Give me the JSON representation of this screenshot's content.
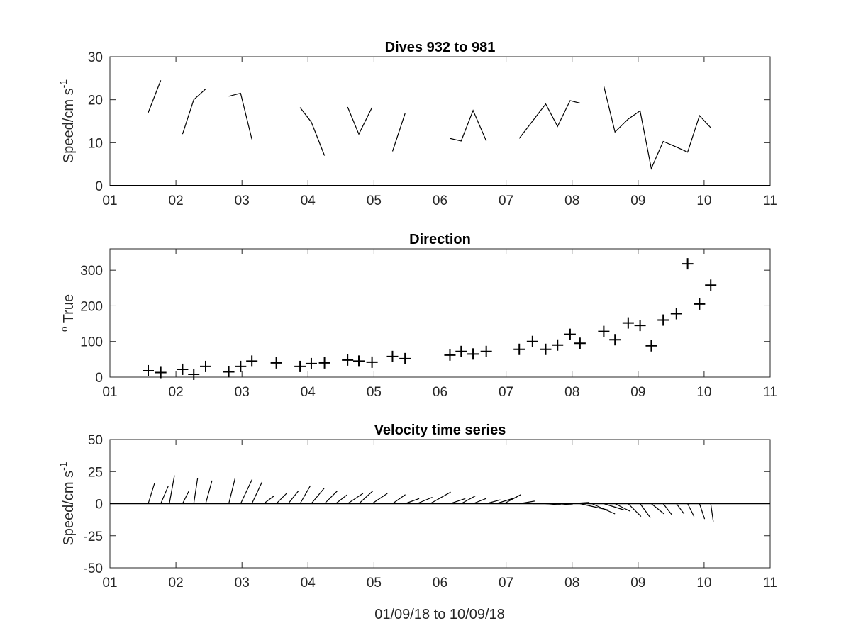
{
  "figure": {
    "xlabel": "01/09/18 to 10/09/18",
    "x_ticks": [
      "01",
      "02",
      "03",
      "04",
      "05",
      "06",
      "07",
      "08",
      "09",
      "10",
      "11"
    ]
  },
  "chart_data": [
    {
      "type": "line",
      "title": "Dives 932 to 981",
      "ylabel": "Speed/cm s",
      "ylabel_exponent": "-1",
      "xlim": [
        1,
        11
      ],
      "ylim": [
        0,
        30
      ],
      "y_ticks": [
        "0",
        "10",
        "20",
        "30"
      ],
      "segments": [
        [
          [
            1.58,
            17
          ],
          [
            1.77,
            24.5
          ]
        ],
        [
          [
            2.1,
            12
          ],
          [
            2.27,
            20
          ],
          [
            2.45,
            22.5
          ]
        ],
        [
          [
            2.8,
            20.8
          ],
          [
            2.98,
            21.5
          ],
          [
            3.15,
            10.8
          ]
        ],
        [
          [
            3.88,
            18.2
          ],
          [
            4.05,
            14.8
          ],
          [
            4.25,
            7
          ]
        ],
        [
          [
            4.6,
            18.3
          ],
          [
            4.77,
            12
          ],
          [
            4.97,
            18.2
          ]
        ],
        [
          [
            5.28,
            8
          ],
          [
            5.47,
            16.8
          ]
        ],
        [
          [
            6.15,
            11
          ],
          [
            6.32,
            10.4
          ],
          [
            6.5,
            17.5
          ],
          [
            6.7,
            10.4
          ]
        ],
        [
          [
            7.2,
            11
          ],
          [
            7.4,
            15
          ],
          [
            7.6,
            19
          ],
          [
            7.78,
            13.8
          ],
          [
            7.97,
            19.8
          ],
          [
            8.12,
            19.2
          ]
        ],
        [
          [
            8.48,
            23.2
          ],
          [
            8.65,
            12.5
          ],
          [
            8.85,
            15.5
          ],
          [
            9.03,
            17.4
          ],
          [
            9.2,
            4
          ],
          [
            9.38,
            10.3
          ],
          [
            9.58,
            9
          ],
          [
            9.75,
            7.8
          ],
          [
            9.93,
            16.3
          ],
          [
            10.1,
            13.5
          ]
        ]
      ]
    },
    {
      "type": "scatter",
      "title": "Direction",
      "ylabel": "True",
      "ylabel_prefix": "o",
      "xlim": [
        1,
        11
      ],
      "ylim": [
        0,
        360
      ],
      "y_ticks": [
        "0",
        "100",
        "200",
        "300"
      ],
      "points": [
        [
          1.58,
          18
        ],
        [
          1.77,
          13
        ],
        [
          2.1,
          22
        ],
        [
          2.27,
          8
        ],
        [
          2.45,
          30
        ],
        [
          2.8,
          15
        ],
        [
          2.98,
          30
        ],
        [
          3.15,
          45
        ],
        [
          3.52,
          40
        ],
        [
          3.88,
          30
        ],
        [
          4.05,
          38
        ],
        [
          4.25,
          40
        ],
        [
          4.6,
          48
        ],
        [
          4.77,
          45
        ],
        [
          4.97,
          42
        ],
        [
          5.28,
          58
        ],
        [
          5.47,
          52
        ],
        [
          6.15,
          62
        ],
        [
          6.32,
          72
        ],
        [
          6.5,
          65
        ],
        [
          6.7,
          72
        ],
        [
          7.2,
          78
        ],
        [
          7.4,
          100
        ],
        [
          7.6,
          78
        ],
        [
          7.78,
          90
        ],
        [
          7.97,
          120
        ],
        [
          8.12,
          95
        ],
        [
          8.48,
          128
        ],
        [
          8.65,
          105
        ],
        [
          8.85,
          152
        ],
        [
          9.03,
          145
        ],
        [
          9.2,
          88
        ],
        [
          9.38,
          160
        ],
        [
          9.58,
          178
        ],
        [
          9.75,
          318
        ],
        [
          9.93,
          205
        ],
        [
          10.1,
          258
        ]
      ]
    },
    {
      "type": "quiver",
      "title": "Velocity time series",
      "ylabel": "Speed/cm s",
      "ylabel_exponent": "-1",
      "xlabel": "01/09/18 to 10/09/18",
      "xlim": [
        1,
        11
      ],
      "ylim": [
        -50,
        50
      ],
      "y_ticks": [
        "-50",
        "-25",
        "0",
        "25",
        "50"
      ],
      "vectors": [
        [
          1.58,
          5,
          16
        ],
        [
          1.77,
          6,
          14
        ],
        [
          1.9,
          4,
          22
        ],
        [
          2.1,
          5,
          10
        ],
        [
          2.27,
          3,
          20
        ],
        [
          2.45,
          5,
          18
        ],
        [
          2.8,
          5,
          20
        ],
        [
          2.98,
          9,
          19
        ],
        [
          3.15,
          8,
          17
        ],
        [
          3.33,
          8,
          6
        ],
        [
          3.52,
          8,
          8
        ],
        [
          3.7,
          8,
          10
        ],
        [
          3.88,
          8,
          14
        ],
        [
          4.05,
          10,
          12
        ],
        [
          4.25,
          10,
          10
        ],
        [
          4.42,
          9,
          7
        ],
        [
          4.6,
          12,
          8
        ],
        [
          4.77,
          11,
          10
        ],
        [
          4.97,
          12,
          8
        ],
        [
          5.28,
          10,
          7
        ],
        [
          5.47,
          11,
          4
        ],
        [
          5.65,
          12,
          5
        ],
        [
          5.85,
          16,
          9
        ],
        [
          6.15,
          12,
          4
        ],
        [
          6.32,
          11,
          6
        ],
        [
          6.5,
          10,
          4
        ],
        [
          6.7,
          11,
          3
        ],
        [
          6.85,
          16,
          5
        ],
        [
          6.97,
          13,
          7
        ],
        [
          7.2,
          12,
          2
        ],
        [
          7.4,
          12,
          0
        ],
        [
          7.6,
          12,
          -1
        ],
        [
          7.78,
          12,
          -1
        ],
        [
          7.97,
          15,
          1
        ],
        [
          8.12,
          22,
          -5
        ],
        [
          8.3,
          18,
          -8
        ],
        [
          8.48,
          16,
          -5
        ],
        [
          8.65,
          12,
          -6
        ],
        [
          8.85,
          10,
          -10
        ],
        [
          9.03,
          8,
          -11
        ],
        [
          9.2,
          10,
          -8
        ],
        [
          9.38,
          7,
          -9
        ],
        [
          9.58,
          6,
          -8
        ],
        [
          9.75,
          5,
          -10
        ],
        [
          9.93,
          4,
          -12
        ],
        [
          10.1,
          2,
          -14
        ]
      ]
    }
  ]
}
